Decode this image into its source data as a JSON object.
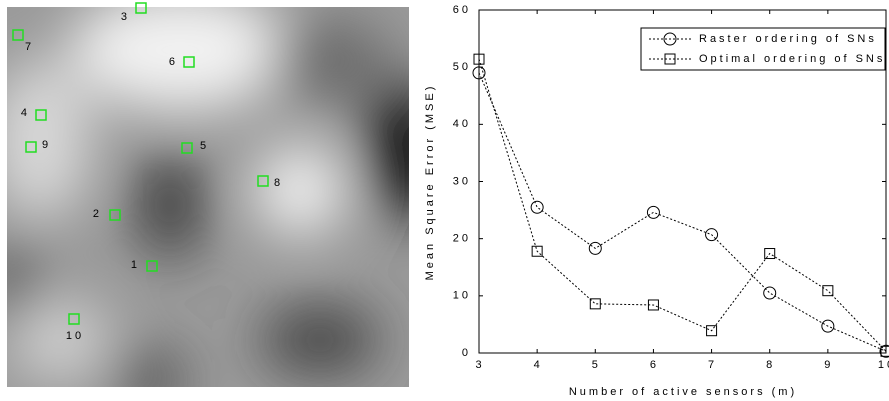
{
  "map": {
    "sensors": [
      {
        "label": "1"
      },
      {
        "label": "2"
      },
      {
        "label": "3"
      },
      {
        "label": "4"
      },
      {
        "label": "5"
      },
      {
        "label": "6"
      },
      {
        "label": "7"
      },
      {
        "label": "8"
      },
      {
        "label": "9"
      },
      {
        "label": "10"
      }
    ]
  },
  "chart_data": {
    "type": "line",
    "x_label": "Number of active sensors (m)",
    "y_label": "Mean Square Error (MSE)",
    "x": [
      3,
      4,
      5,
      6,
      7,
      8,
      9,
      10
    ],
    "series": [
      {
        "name": "Raster ordering of SNs",
        "color": "#000000",
        "marker": "circle",
        "values": [
          49.0,
          25.5,
          18.3,
          24.6,
          20.7,
          10.5,
          4.7,
          0.3
        ]
      },
      {
        "name": "Optimal ordering of SNs",
        "color": "#000000",
        "marker": "square",
        "values": [
          51.4,
          17.8,
          8.6,
          8.4,
          3.9,
          17.4,
          10.9,
          0.3
        ]
      }
    ],
    "xlim": [
      3,
      10
    ],
    "ylim": [
      0,
      60
    ],
    "xticks": [
      3,
      4,
      5,
      6,
      7,
      8,
      9,
      10
    ],
    "yticks": [
      0,
      10,
      20,
      30,
      40,
      50,
      60
    ],
    "legend": "upper right"
  }
}
